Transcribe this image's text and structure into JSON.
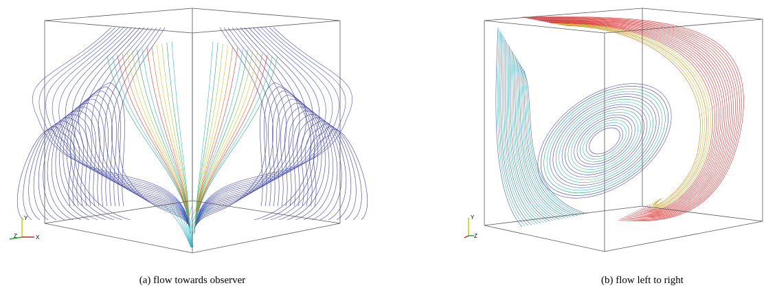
{
  "figures": [
    {
      "caption": "(a) flow towards observer",
      "triad": {
        "y": "Y",
        "h1": "Z",
        "h2": "X"
      }
    },
    {
      "caption": "(b) flow left to right",
      "triad": {
        "y": "Y",
        "h1": "Z"
      }
    }
  ]
}
